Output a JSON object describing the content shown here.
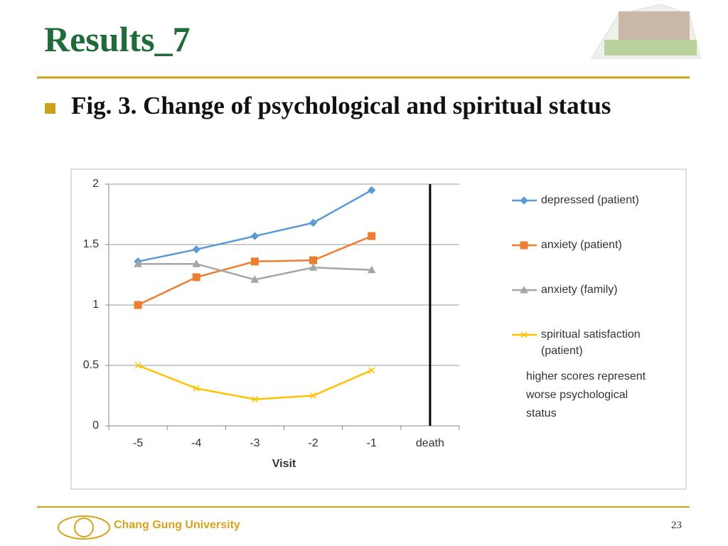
{
  "slide": {
    "title": "Results_7",
    "bullet": "Fig. 3. Change of psychological and spiritual status",
    "footer": "Chang Gung University",
    "page_number": "23"
  },
  "chart_data": {
    "type": "line",
    "categories": [
      "-5",
      "-4",
      "-3",
      "-2",
      "-1",
      "death"
    ],
    "x_label": "Visit",
    "series": [
      {
        "name": "depressed (patient)",
        "color": "#5b9bd5",
        "marker": "diamond",
        "values": [
          1.36,
          1.46,
          1.57,
          1.68,
          1.95,
          null
        ]
      },
      {
        "name": "anxiety (patient)",
        "color": "#ed7d31",
        "marker": "square",
        "values": [
          1.0,
          1.23,
          1.36,
          1.37,
          1.57,
          null
        ]
      },
      {
        "name": "anxiety (family)",
        "color": "#a5a5a5",
        "marker": "triangle",
        "values": [
          1.34,
          1.34,
          1.21,
          1.31,
          1.29,
          null
        ]
      },
      {
        "name": "spiritual satisfaction (patient)",
        "color": "#ffc000",
        "marker": "x",
        "values": [
          0.5,
          0.31,
          0.22,
          0.25,
          0.46,
          null
        ]
      }
    ],
    "ylim": [
      0,
      2
    ],
    "yticks": [
      0,
      0.5,
      1,
      1.5,
      2
    ],
    "grid": true,
    "legend": "right",
    "annotation": [
      "higher scores represent",
      "worse psychological",
      "status"
    ]
  }
}
